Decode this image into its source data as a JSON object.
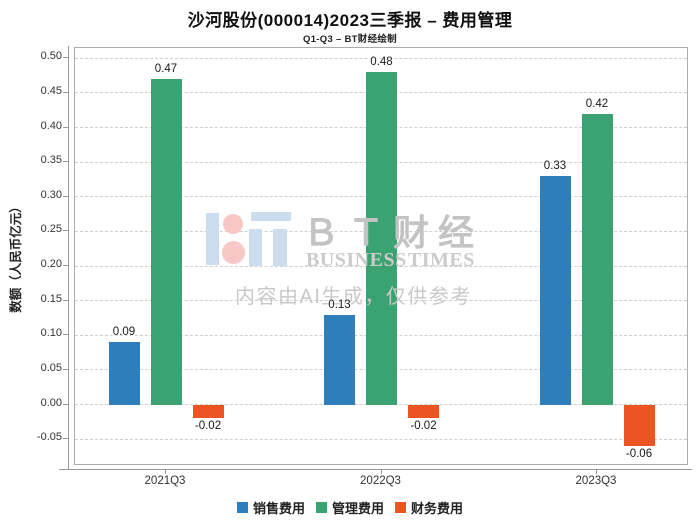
{
  "chart_data": {
    "type": "bar",
    "title": "沙河股份(000014)2023三季报 – 费用管理",
    "subtitle": "Q1-Q3 – BT财经绘制",
    "categories": [
      "2021Q3",
      "2022Q3",
      "2023Q3"
    ],
    "series": [
      {
        "name": "销售费用",
        "color": "#2F7EBC",
        "values": [
          0.09,
          0.13,
          0.33
        ]
      },
      {
        "name": "管理费用",
        "color": "#3BA272",
        "values": [
          0.47,
          0.48,
          0.42
        ]
      },
      {
        "name": "财务费用",
        "color": "#EC5424",
        "values": [
          -0.02,
          -0.02,
          -0.06
        ]
      }
    ],
    "xlabel": "",
    "ylabel": "数额（人民币亿元）",
    "ylim": [
      -0.0887,
      0.5148
    ],
    "yticks": [
      0.5,
      0.45,
      0.4,
      0.35,
      0.3,
      0.25,
      0.2,
      0.15,
      0.1,
      0.05,
      0.0,
      -0.05
    ],
    "grid": "horizontal-dashed",
    "legend_position": "bottom",
    "value_labels": true
  },
  "watermark": {
    "brand_cn": "ＢＴ财经",
    "brand_en": "BUSINESS TIMES",
    "disclaimer": "内容由AI生成，仅供参考"
  },
  "colors": {
    "grid": "#CFCFCF",
    "frame": "#ACACAC",
    "spine": "#999999",
    "tick_label": "#333333",
    "logo_blue": "#CBDDEF",
    "logo_pink": "#F7C8C6",
    "watermark_text": "#C6C6C6"
  }
}
